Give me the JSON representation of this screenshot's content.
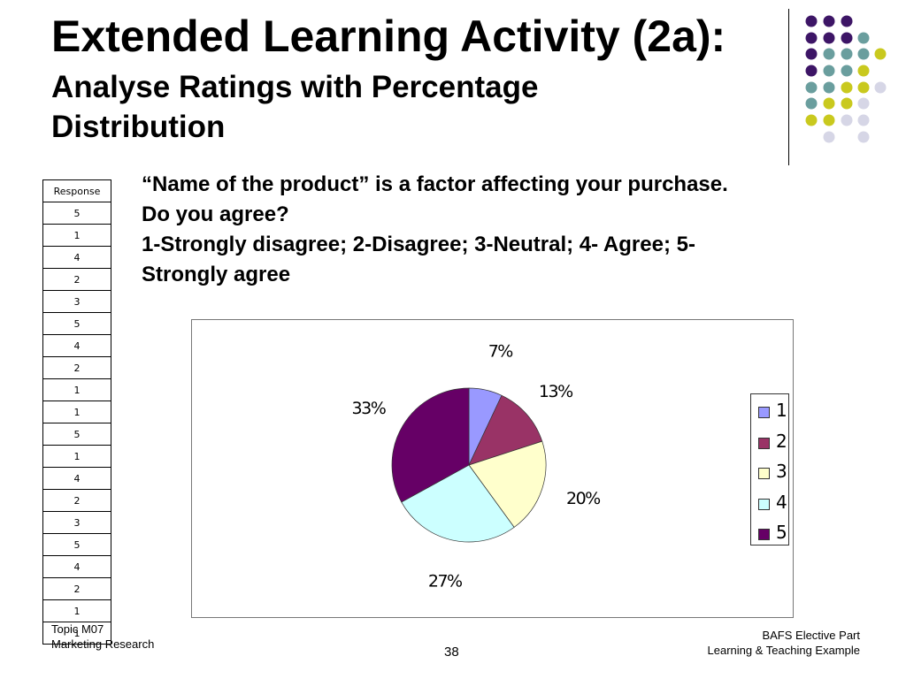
{
  "slide": {
    "title": "Extended Learning Activity (2a):",
    "subtitle": "Analyse Ratings with Percentage Distribution",
    "question": {
      "line1": "“Name of the product” is a factor affecting your purchase.",
      "line2": "Do you agree?",
      "line3": "1-Strongly disagree; 2-Disagree; 3-Neutral; 4- Agree; 5-",
      "line4": "Strongly agree"
    },
    "footer": {
      "left_line1": "Topic M07",
      "left_line2": "Marketing Research",
      "page_number": "38",
      "right_line1": "BAFS Elective Part",
      "right_line2": "Learning & Teaching Example"
    }
  },
  "response_table": {
    "header": "Response",
    "values": [
      "5",
      "1",
      "4",
      "2",
      "3",
      "5",
      "4",
      "2",
      "1",
      "1",
      "5",
      "1",
      "4",
      "2",
      "3",
      "5",
      "4",
      "2",
      "1",
      "1"
    ]
  },
  "colors": {
    "dot_purple": "#3d1566",
    "dot_teal": "#6a9e9e",
    "dot_yellow": "#c9c91e",
    "dot_lilac": "#d6d6e6"
  },
  "chart_data": {
    "type": "pie",
    "categories": [
      "1",
      "2",
      "3",
      "4",
      "5"
    ],
    "values": [
      7,
      13,
      20,
      27,
      33
    ],
    "data_labels": [
      "7%",
      "13%",
      "20%",
      "27%",
      "33%"
    ],
    "colors": [
      "#9999ff",
      "#993366",
      "#ffffcc",
      "#ccffff",
      "#660066"
    ],
    "legend_position": "right",
    "title": ""
  }
}
